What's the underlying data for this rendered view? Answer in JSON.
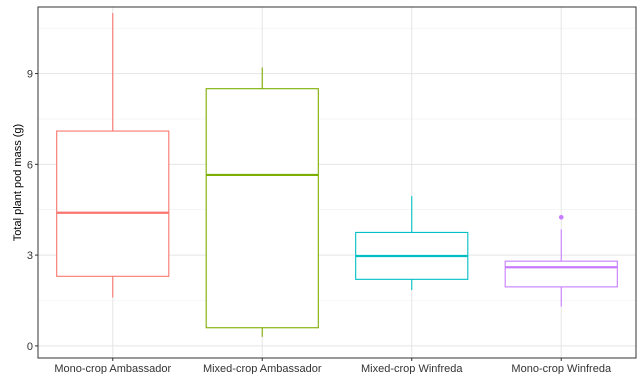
{
  "chart_data": {
    "type": "box",
    "title": "",
    "xlabel": "",
    "ylabel": "Total plant pod mass (g)",
    "ylim": [
      -0.4,
      11.2
    ],
    "yticks": [
      0,
      3,
      6,
      9
    ],
    "grid": true,
    "legend": "none",
    "categories": [
      "Mono-crop Ambassador",
      "Mixed-crop Ambassador",
      "Mixed-crop Winfreda",
      "Mono-crop Winfreda"
    ],
    "colors": [
      "#F8766D",
      "#7CAE00",
      "#00BFC4",
      "#C77CFF"
    ],
    "boxes": [
      {
        "whisker_low": 1.6,
        "q1": 2.3,
        "median": 4.4,
        "q3": 7.1,
        "whisker_high": 11.0,
        "outliers": []
      },
      {
        "whisker_low": 0.3,
        "q1": 0.6,
        "median": 5.65,
        "q3": 8.5,
        "whisker_high": 9.2,
        "outliers": []
      },
      {
        "whisker_low": 1.85,
        "q1": 2.2,
        "median": 2.97,
        "q3": 3.75,
        "whisker_high": 4.95,
        "outliers": []
      },
      {
        "whisker_low": 1.3,
        "q1": 1.95,
        "median": 2.6,
        "q3": 2.8,
        "whisker_high": 3.85,
        "outliers": [
          4.25
        ]
      }
    ]
  }
}
